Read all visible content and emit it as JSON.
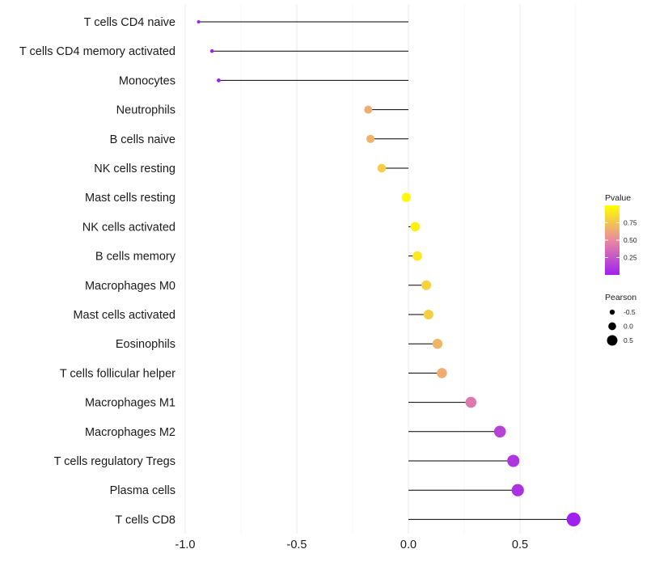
{
  "chart_data": {
    "type": "lollipop",
    "title": "",
    "xlabel": "",
    "ylabel": "",
    "xlim": [
      -1.0,
      0.75
    ],
    "x_ticks": [
      -1.0,
      -0.5,
      0.0,
      0.5
    ],
    "x_tick_labels": [
      "-1.0",
      "-0.5",
      "0.0",
      "0.5"
    ],
    "grid": true,
    "categories": [
      "T cells CD4 naive",
      "T cells CD4 memory activated",
      "Monocytes",
      "Neutrophils",
      "B cells naive",
      "NK cells resting",
      "Mast cells resting",
      "NK cells activated",
      "B cells memory",
      "Macrophages M0",
      "Mast cells activated",
      "Eosinophils",
      "T cells follicular helper",
      "Macrophages M1",
      "Macrophages M2",
      "T cells regulatory  Tregs",
      "Plasma cells",
      "T cells CD8"
    ],
    "values": [
      -0.94,
      -0.88,
      -0.85,
      -0.18,
      -0.17,
      -0.12,
      -0.01,
      0.03,
      0.04,
      0.08,
      0.09,
      0.13,
      0.15,
      0.28,
      0.41,
      0.47,
      0.49,
      0.74
    ],
    "pvalues": [
      0.0,
      0.0,
      0.0,
      0.65,
      0.67,
      0.78,
      0.98,
      0.93,
      0.9,
      0.81,
      0.79,
      0.69,
      0.65,
      0.42,
      0.16,
      0.1,
      0.08,
      0.0
    ],
    "legend_color": {
      "title": "Pvalue",
      "ticks": [
        0.25,
        0.5,
        0.75
      ],
      "tick_labels": [
        "0.25",
        "0.50",
        "0.75"
      ],
      "range": [
        0.0,
        1.0
      ],
      "low_color": "#a020f0",
      "mid_color": "#e88aa0",
      "high_color": "#ffff00",
      "position": "right"
    },
    "legend_size": {
      "title": "Pearson",
      "values": [
        -0.5,
        0.0,
        0.5
      ],
      "labels": [
        "-0.5",
        "0.0",
        "0.5"
      ],
      "position": "right"
    }
  }
}
